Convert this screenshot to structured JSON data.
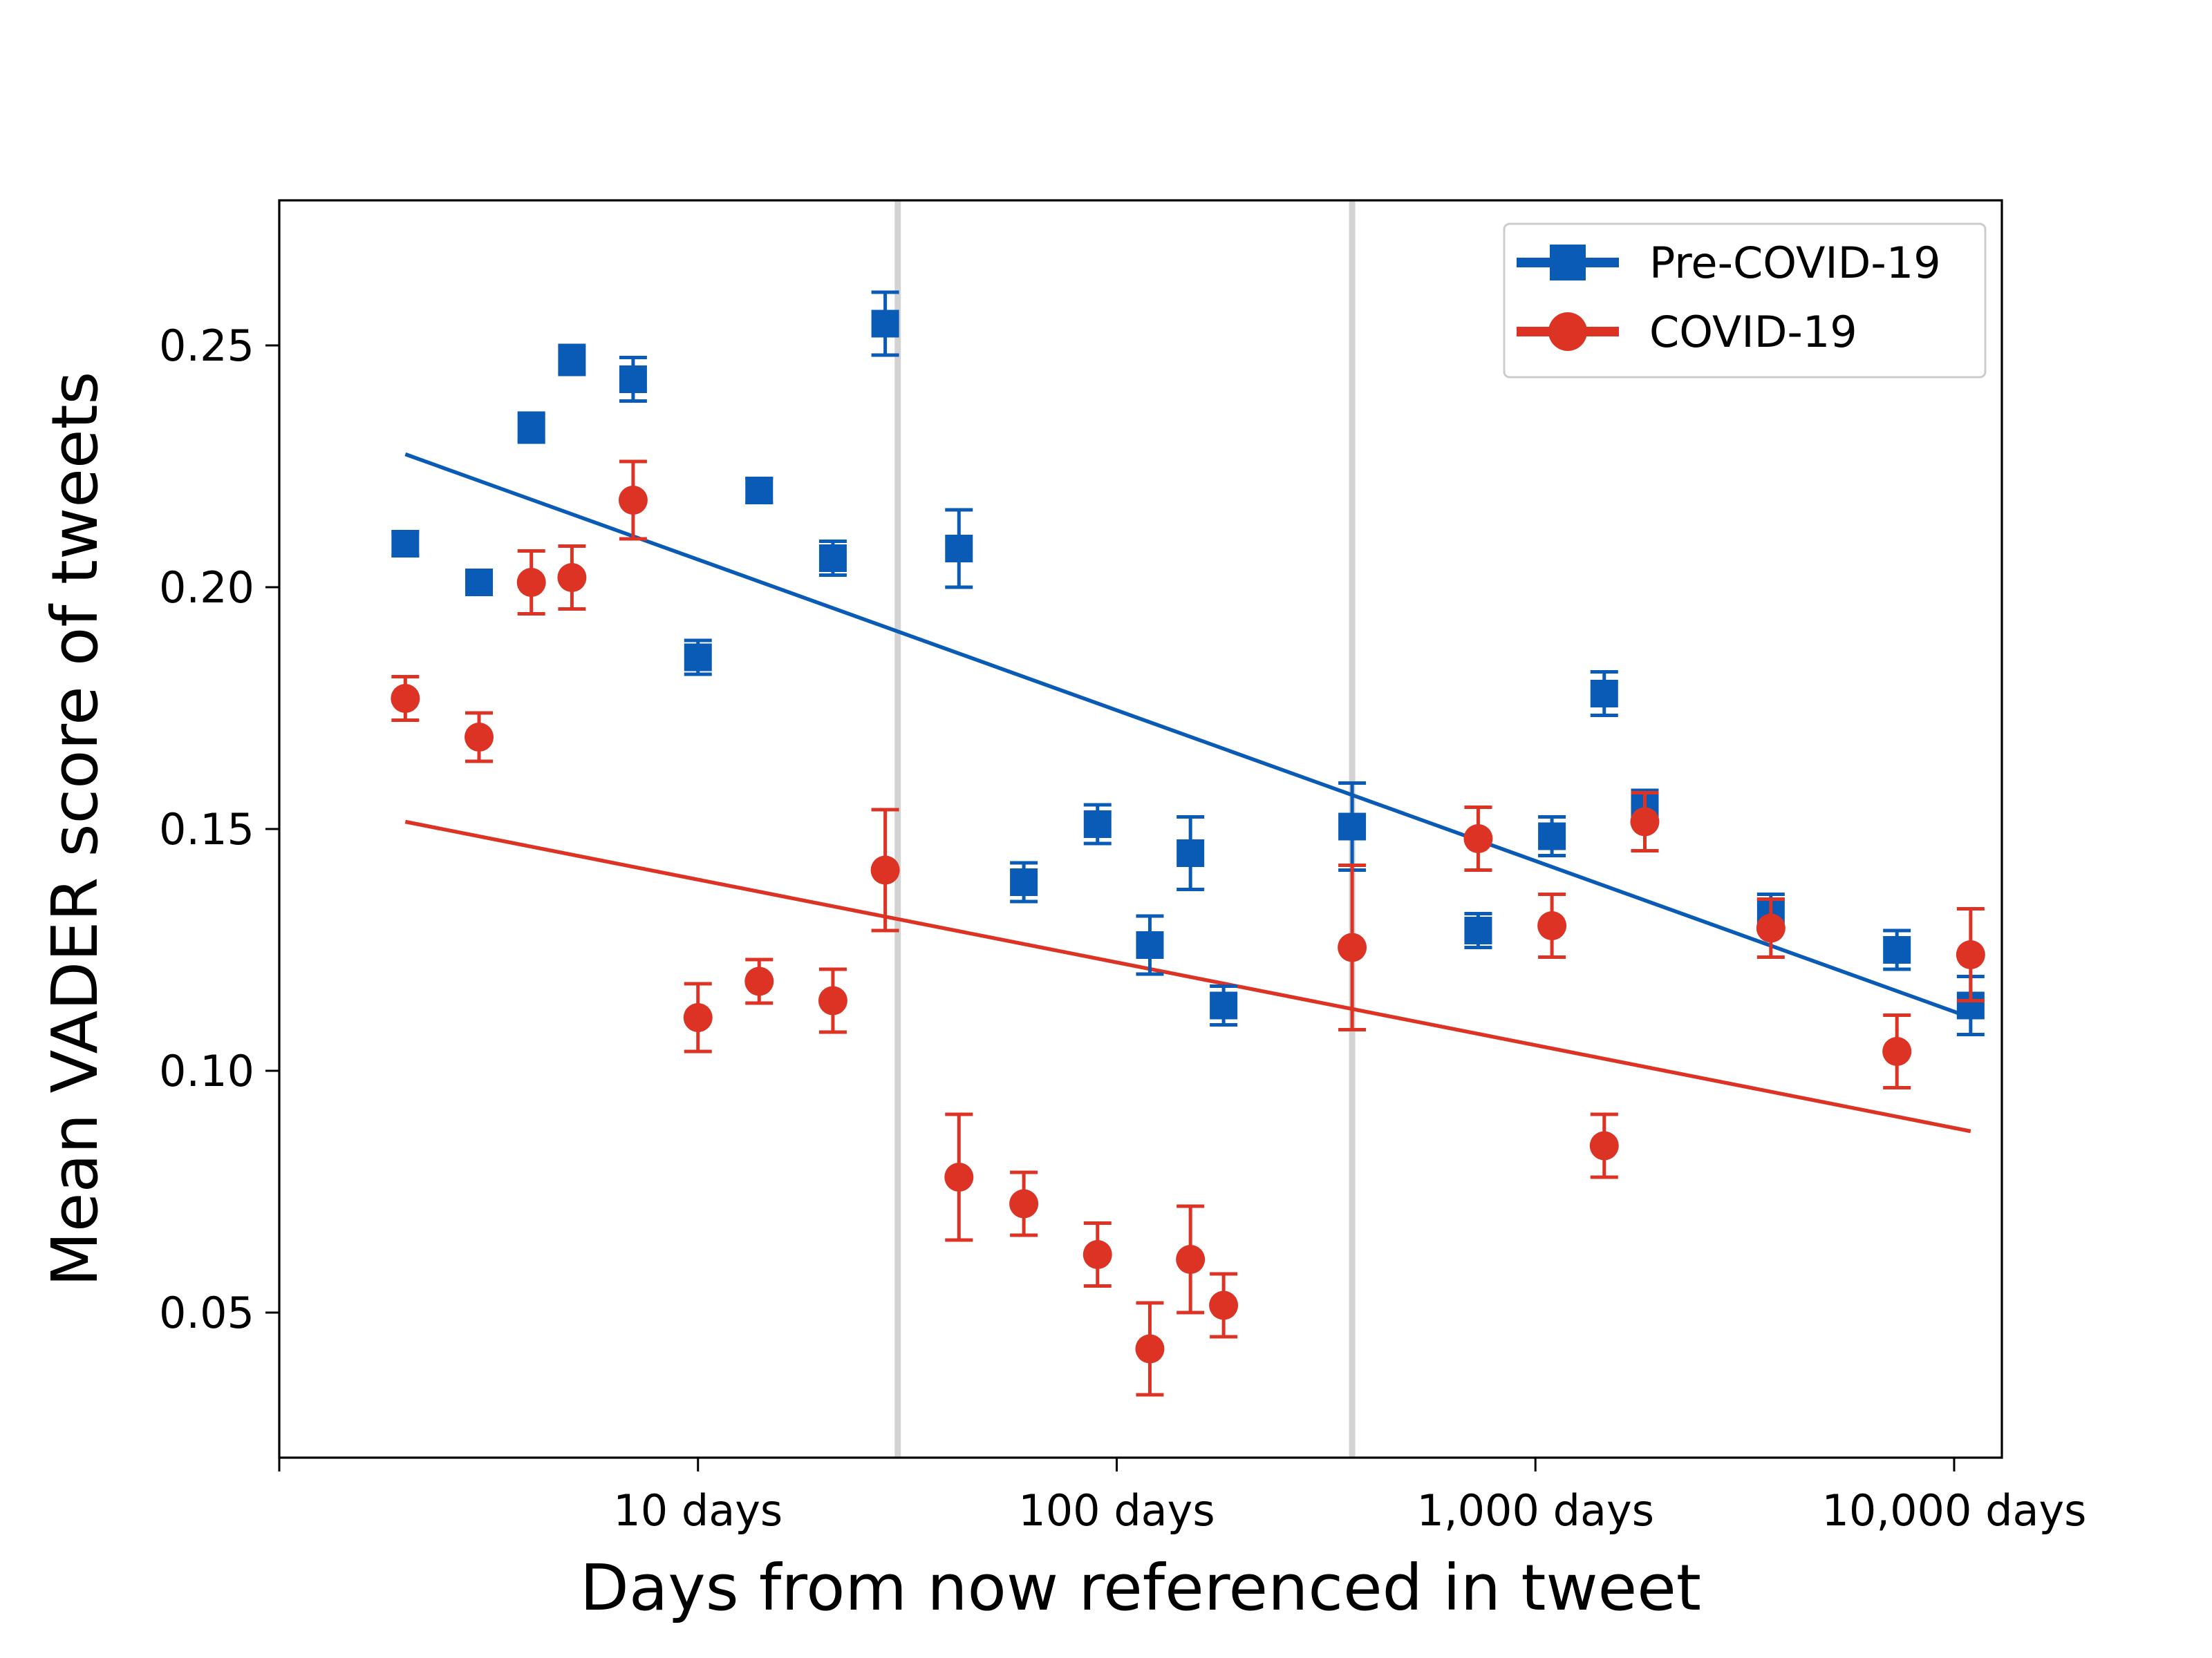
{
  "chart_data": {
    "type": "scatter",
    "title": "",
    "xlabel": "Days from now referenced in tweet",
    "ylabel": "Mean VADER score of tweets",
    "xscale": "log",
    "xlim": [
      1,
      13000
    ],
    "ylim": [
      0.02,
      0.28
    ],
    "x_ticks": [
      {
        "value": 10,
        "label": "10 days"
      },
      {
        "value": 100,
        "label": "100 days"
      },
      {
        "value": 1000,
        "label": "1,000 days"
      },
      {
        "value": 10000,
        "label": "10,000 days"
      }
    ],
    "y_ticks": [
      {
        "value": 0.05,
        "label": "0.05"
      },
      {
        "value": 0.1,
        "label": "0.10"
      },
      {
        "value": 0.15,
        "label": "0.15"
      },
      {
        "value": 0.2,
        "label": "0.20"
      },
      {
        "value": 0.25,
        "label": "0.25"
      }
    ],
    "vertical_reference_lines": [
      30,
      365
    ],
    "reference_line_color": "#d3d3d3",
    "grid": false,
    "legend_position": "top-right",
    "series": [
      {
        "name": "Pre-COVID-19",
        "color": "#0a5bb5",
        "marker": "square",
        "points": [
          {
            "x": 2,
            "y": 0.209,
            "err": 0.0025
          },
          {
            "x": 3,
            "y": 0.201,
            "err": 0.0025
          },
          {
            "x": 4,
            "y": 0.233,
            "err": 0.003
          },
          {
            "x": 5,
            "y": 0.247,
            "err": 0.003
          },
          {
            "x": 7,
            "y": 0.243,
            "err": 0.0045
          },
          {
            "x": 10,
            "y": 0.1855,
            "err": 0.0035
          },
          {
            "x": 14,
            "y": 0.22,
            "err": 0.0025
          },
          {
            "x": 21,
            "y": 0.206,
            "err": 0.0035
          },
          {
            "x": 28,
            "y": 0.2545,
            "err": 0.0065
          },
          {
            "x": 42,
            "y": 0.208,
            "err": 0.008
          },
          {
            "x": 60,
            "y": 0.139,
            "err": 0.004
          },
          {
            "x": 90,
            "y": 0.151,
            "err": 0.004
          },
          {
            "x": 120,
            "y": 0.126,
            "err": 0.006
          },
          {
            "x": 150,
            "y": 0.145,
            "err": 0.0075
          },
          {
            "x": 180,
            "y": 0.1135,
            "err": 0.004
          },
          {
            "x": 365,
            "y": 0.1505,
            "err": 0.009
          },
          {
            "x": 730,
            "y": 0.129,
            "err": 0.0035
          },
          {
            "x": 1095,
            "y": 0.1485,
            "err": 0.004
          },
          {
            "x": 1460,
            "y": 0.178,
            "err": 0.0045
          },
          {
            "x": 1825,
            "y": 0.1545,
            "err": 0.0035
          },
          {
            "x": 3650,
            "y": 0.133,
            "err": 0.0035
          },
          {
            "x": 7300,
            "y": 0.125,
            "err": 0.004
          },
          {
            "x": 10950,
            "y": 0.1135,
            "err": 0.006
          }
        ],
        "trend_line": {
          "x": [
            2,
            10950
          ],
          "y": [
            0.2275,
            0.111
          ]
        }
      },
      {
        "name": "COVID-19",
        "color": "#dc3324",
        "marker": "circle",
        "points": [
          {
            "x": 2,
            "y": 0.177,
            "err": 0.0045
          },
          {
            "x": 3,
            "y": 0.169,
            "err": 0.005
          },
          {
            "x": 4,
            "y": 0.201,
            "err": 0.0065
          },
          {
            "x": 5,
            "y": 0.202,
            "err": 0.0065
          },
          {
            "x": 7,
            "y": 0.218,
            "err": 0.008
          },
          {
            "x": 10,
            "y": 0.111,
            "err": 0.007
          },
          {
            "x": 14,
            "y": 0.1185,
            "err": 0.0045
          },
          {
            "x": 21,
            "y": 0.1145,
            "err": 0.0065
          },
          {
            "x": 28,
            "y": 0.1415,
            "err": 0.0125
          },
          {
            "x": 42,
            "y": 0.078,
            "err": 0.013
          },
          {
            "x": 60,
            "y": 0.0725,
            "err": 0.0065
          },
          {
            "x": 90,
            "y": 0.062,
            "err": 0.0065
          },
          {
            "x": 120,
            "y": 0.0425,
            "err": 0.0095
          },
          {
            "x": 150,
            "y": 0.061,
            "err": 0.011
          },
          {
            "x": 180,
            "y": 0.0515,
            "err": 0.0065
          },
          {
            "x": 365,
            "y": 0.1255,
            "err": 0.017
          },
          {
            "x": 730,
            "y": 0.148,
            "err": 0.0065
          },
          {
            "x": 1095,
            "y": 0.13,
            "err": 0.0065
          },
          {
            "x": 1460,
            "y": 0.0845,
            "err": 0.0065
          },
          {
            "x": 1825,
            "y": 0.1515,
            "err": 0.006
          },
          {
            "x": 3650,
            "y": 0.1295,
            "err": 0.006
          },
          {
            "x": 7300,
            "y": 0.104,
            "err": 0.0075
          },
          {
            "x": 10950,
            "y": 0.124,
            "err": 0.0095
          }
        ],
        "trend_line": {
          "x": [
            2,
            10950
          ],
          "y": [
            0.1515,
            0.0875
          ]
        }
      }
    ]
  }
}
